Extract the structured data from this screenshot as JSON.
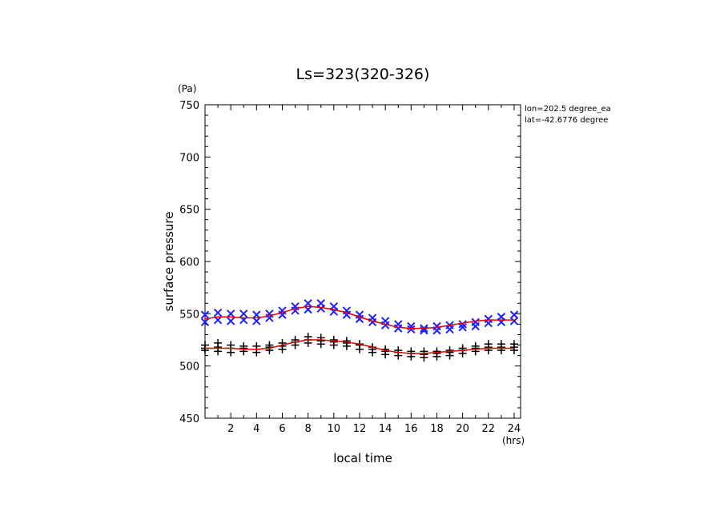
{
  "chart_data": {
    "type": "scatter",
    "title": "Ls=323(320-326)",
    "xlabel": "local time",
    "ylabel": "surface pressure",
    "x_unit": "(hrs)",
    "y_unit": "(Pa)",
    "xlim": [
      0,
      24.5
    ],
    "ylim": [
      450,
      750
    ],
    "x_ticks": [
      2,
      4,
      6,
      8,
      10,
      12,
      14,
      16,
      18,
      20,
      22,
      24
    ],
    "y_ticks": [
      450,
      500,
      550,
      600,
      650,
      700,
      750
    ],
    "info_lines": [
      "lon=202.5 degree_ea",
      "lat=-42.6776 degree"
    ],
    "colors": {
      "upper_markers": "#1f1fff",
      "lower_markers": "#000000",
      "fit_line": "#e00000"
    },
    "series": [
      {
        "marker": "x",
        "color": "#1f1fff",
        "x": [
          0,
          0,
          1,
          1,
          2,
          2,
          3,
          3,
          4,
          4,
          5,
          5,
          6,
          6,
          7,
          7,
          8,
          8,
          9,
          9,
          10,
          10,
          11,
          11,
          12,
          12,
          13,
          13,
          14,
          14,
          15,
          15,
          16,
          16,
          17,
          17,
          18,
          18,
          19,
          19,
          20,
          20,
          21,
          21,
          22,
          22,
          23,
          23,
          24,
          24
        ],
        "y": [
          549,
          542,
          551,
          544,
          550,
          543,
          550,
          544,
          549,
          543,
          550,
          546,
          553,
          549,
          557,
          553,
          560,
          554,
          560,
          555,
          557,
          552,
          553,
          549,
          549,
          545,
          546,
          542,
          543,
          539,
          540,
          536,
          538,
          535,
          536,
          534,
          538,
          534,
          539,
          535,
          540,
          537,
          542,
          538,
          545,
          541,
          547,
          542,
          549,
          543
        ]
      },
      {
        "marker": "+",
        "color": "#000000",
        "x": [
          0,
          0,
          0,
          1,
          1,
          1,
          2,
          2,
          2,
          3,
          3,
          3,
          4,
          4,
          4,
          5,
          5,
          5,
          6,
          6,
          6,
          7,
          7,
          7,
          8,
          8,
          8,
          9,
          9,
          9,
          10,
          10,
          10,
          11,
          11,
          11,
          12,
          12,
          12,
          13,
          13,
          13,
          14,
          14,
          14,
          15,
          15,
          15,
          16,
          16,
          16,
          17,
          17,
          17,
          18,
          18,
          18,
          19,
          19,
          19,
          20,
          20,
          20,
          21,
          21,
          21,
          22,
          22,
          22,
          23,
          23,
          23,
          24,
          24,
          24
        ],
        "y": [
          520,
          515,
          517,
          522,
          514,
          518,
          520,
          513,
          517,
          519,
          514,
          517,
          519,
          513,
          516,
          520,
          515,
          518,
          522,
          516,
          519,
          525,
          520,
          523,
          528,
          522,
          525,
          527,
          521,
          524,
          525,
          520,
          523,
          524,
          519,
          522,
          521,
          516,
          520,
          518,
          513,
          516,
          516,
          511,
          514,
          515,
          510,
          513,
          514,
          509,
          512,
          514,
          508,
          511,
          514,
          509,
          512,
          515,
          510,
          513,
          517,
          512,
          515,
          519,
          514,
          517,
          521,
          515,
          518,
          521,
          515,
          518,
          521,
          515,
          518
        ]
      },
      {
        "marker": "line",
        "color": "#e00000",
        "x": [
          0,
          1,
          2,
          3,
          4,
          5,
          6,
          7,
          8,
          9,
          10,
          11,
          12,
          13,
          14,
          15,
          16,
          17,
          18,
          19,
          20,
          21,
          22,
          23,
          24
        ],
        "y": [
          545,
          547,
          547,
          546,
          546,
          548,
          551,
          555,
          557,
          556,
          554,
          551,
          547,
          543,
          540,
          537,
          536,
          536,
          537,
          539,
          541,
          543,
          544,
          544,
          544
        ]
      },
      {
        "marker": "line",
        "color": "#e00000",
        "x": [
          0,
          1,
          2,
          3,
          4,
          5,
          6,
          7,
          8,
          9,
          10,
          11,
          12,
          13,
          14,
          15,
          16,
          17,
          18,
          19,
          20,
          21,
          22,
          23,
          24
        ],
        "y": [
          517,
          517,
          517,
          516,
          516,
          517,
          520,
          523,
          525,
          525,
          524,
          523,
          521,
          518,
          515,
          513,
          512,
          512,
          513,
          514,
          515,
          516,
          517,
          517,
          517
        ]
      }
    ]
  }
}
